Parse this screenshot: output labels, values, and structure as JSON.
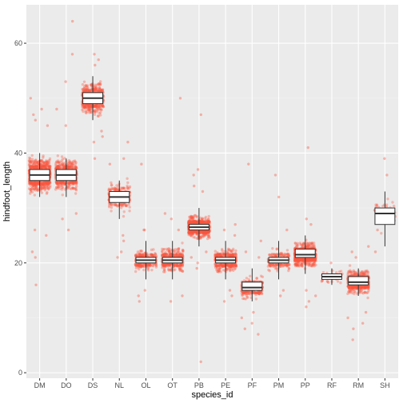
{
  "chart_data": {
    "type": "box",
    "xlabel": "species_id",
    "ylabel": "hindfoot_length",
    "ylim": [
      -1,
      67
    ],
    "yticks": [
      0,
      20,
      40,
      60
    ],
    "grid": "on",
    "categories": [
      "DM",
      "DO",
      "DS",
      "NL",
      "OL",
      "OT",
      "PB",
      "PE",
      "PF",
      "PM",
      "PP",
      "RF",
      "RM",
      "SH"
    ],
    "boxes": [
      {
        "species": "DM",
        "min": 32,
        "q1": 35,
        "median": 36,
        "q3": 37,
        "max": 40,
        "n_jitter": 900,
        "spread": 2.4
      },
      {
        "species": "DO",
        "min": 32,
        "q1": 35,
        "median": 36,
        "q3": 37,
        "max": 39,
        "n_jitter": 650,
        "spread": 2.2
      },
      {
        "species": "DS",
        "min": 46,
        "q1": 49,
        "median": 50,
        "q3": 51,
        "max": 54,
        "n_jitter": 650,
        "spread": 2.2
      },
      {
        "species": "NL",
        "min": 28,
        "q1": 31,
        "median": 32,
        "q3": 33,
        "max": 35,
        "n_jitter": 300,
        "spread": 1.8
      },
      {
        "species": "OL",
        "min": 17,
        "q1": 20,
        "median": 20.5,
        "q3": 21,
        "max": 24,
        "n_jitter": 320,
        "spread": 1.3
      },
      {
        "species": "OT",
        "min": 17,
        "q1": 20,
        "median": 20.5,
        "q3": 21,
        "max": 24,
        "n_jitter": 450,
        "spread": 1.4
      },
      {
        "species": "PB",
        "min": 23,
        "q1": 26,
        "median": 26.5,
        "q3": 27,
        "max": 30,
        "n_jitter": 800,
        "spread": 1.3
      },
      {
        "species": "PE",
        "min": 17,
        "q1": 20,
        "median": 20.5,
        "q3": 21,
        "max": 24,
        "n_jitter": 500,
        "spread": 1.3
      },
      {
        "species": "PF",
        "min": 13,
        "q1": 15,
        "median": 15.5,
        "q3": 16.5,
        "max": 19,
        "n_jitter": 350,
        "spread": 1.2
      },
      {
        "species": "PM",
        "min": 17,
        "q1": 20,
        "median": 20.5,
        "q3": 21,
        "max": 24,
        "n_jitter": 250,
        "spread": 1.3
      },
      {
        "species": "PP",
        "min": 18,
        "q1": 21,
        "median": 21.5,
        "q3": 22.5,
        "max": 25,
        "n_jitter": 900,
        "spread": 1.5
      },
      {
        "species": "RF",
        "min": 16,
        "q1": 17,
        "median": 17.5,
        "q3": 18,
        "max": 19,
        "n_jitter": 40,
        "spread": 0.8
      },
      {
        "species": "RM",
        "min": 14,
        "q1": 16,
        "median": 16.5,
        "q3": 17.5,
        "max": 19,
        "n_jitter": 650,
        "spread": 1.5
      },
      {
        "species": "SH",
        "min": 23,
        "q1": 27,
        "median": 29,
        "q3": 30,
        "max": 33,
        "n_jitter": 60,
        "spread": 2.0
      }
    ],
    "outliers": [
      {
        "species": "DM",
        "values": [
          16,
          21,
          22,
          25,
          26,
          45,
          46,
          47,
          48,
          50
        ]
      },
      {
        "species": "DO",
        "values": [
          26,
          28,
          29,
          45,
          48,
          53,
          58,
          64
        ]
      },
      {
        "species": "DS",
        "values": [
          39,
          42,
          43,
          44,
          56,
          57,
          58
        ]
      },
      {
        "species": "NL",
        "values": [
          21,
          22,
          24,
          25,
          38,
          39,
          42
        ]
      },
      {
        "species": "OL",
        "values": [
          13,
          14,
          15,
          26,
          26,
          38
        ]
      },
      {
        "species": "OT",
        "values": [
          13,
          14,
          26,
          28,
          29,
          50
        ]
      },
      {
        "species": "PB",
        "values": [
          2,
          19,
          20,
          21,
          22,
          33,
          34,
          36,
          37,
          47
        ]
      },
      {
        "species": "PE",
        "values": [
          13,
          14,
          15,
          25,
          26,
          27
        ]
      },
      {
        "species": "PF",
        "values": [
          7,
          8,
          9,
          10,
          11,
          21,
          22,
          24,
          38
        ]
      },
      {
        "species": "PM",
        "values": [
          14,
          15,
          26,
          32,
          36
        ]
      },
      {
        "species": "PP",
        "values": [
          12,
          13,
          14,
          15,
          27,
          28,
          41
        ]
      },
      {
        "species": "RF",
        "values": [
          20
        ]
      },
      {
        "species": "RM",
        "values": [
          6,
          8,
          9,
          10,
          11,
          21,
          22,
          23
        ]
      },
      {
        "species": "SH",
        "values": [
          22,
          26,
          36,
          39
        ]
      }
    ],
    "colors": {
      "point": "#f8553f",
      "panel": "#ebebeb",
      "grid_major": "#ffffff",
      "grid_minor": "#f3f3f3",
      "box_fill": "#ffffff",
      "box_line": "#333333"
    }
  }
}
